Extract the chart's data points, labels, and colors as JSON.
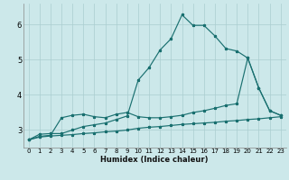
{
  "xlabel": "Humidex (Indice chaleur)",
  "bg_color": "#cce8ea",
  "grid_color": "#aacdd0",
  "line_color": "#1a7070",
  "xlim": [
    -0.5,
    23.5
  ],
  "ylim": [
    2.5,
    6.6
  ],
  "yticks": [
    3,
    4,
    5,
    6
  ],
  "xticks": [
    0,
    1,
    2,
    3,
    4,
    5,
    6,
    7,
    8,
    9,
    10,
    11,
    12,
    13,
    14,
    15,
    16,
    17,
    18,
    19,
    20,
    21,
    22,
    23
  ],
  "series1_x": [
    0,
    1,
    2,
    3,
    4,
    5,
    6,
    7,
    8,
    9,
    10,
    11,
    12,
    13,
    14,
    15,
    16,
    17,
    18,
    19,
    20,
    21,
    22,
    23
  ],
  "series1_y": [
    2.72,
    2.8,
    2.83,
    2.85,
    2.87,
    2.9,
    2.92,
    2.95,
    2.97,
    3.0,
    3.05,
    3.08,
    3.1,
    3.13,
    3.16,
    3.18,
    3.2,
    3.22,
    3.25,
    3.27,
    3.3,
    3.32,
    3.35,
    3.38
  ],
  "series2_x": [
    0,
    1,
    2,
    3,
    4,
    5,
    6,
    7,
    8,
    9,
    10,
    11,
    12,
    13,
    14,
    15,
    16,
    17,
    18,
    19,
    20,
    21,
    22,
    23
  ],
  "series2_y": [
    2.72,
    2.82,
    2.85,
    3.35,
    3.42,
    3.45,
    3.38,
    3.35,
    3.45,
    3.5,
    3.38,
    3.35,
    3.35,
    3.38,
    3.42,
    3.5,
    3.55,
    3.62,
    3.7,
    3.75,
    5.05,
    4.2,
    3.55,
    3.42
  ],
  "series3_x": [
    0,
    1,
    2,
    3,
    4,
    5,
    6,
    7,
    8,
    9,
    10,
    11,
    12,
    13,
    14,
    15,
    16,
    17,
    18,
    19,
    20,
    21,
    22,
    23
  ],
  "series3_y": [
    2.72,
    2.88,
    2.9,
    2.9,
    3.0,
    3.1,
    3.15,
    3.2,
    3.3,
    3.4,
    4.42,
    4.78,
    5.28,
    5.6,
    6.28,
    5.98,
    5.98,
    5.68,
    5.32,
    5.25,
    5.05,
    4.2,
    3.55,
    3.42
  ]
}
